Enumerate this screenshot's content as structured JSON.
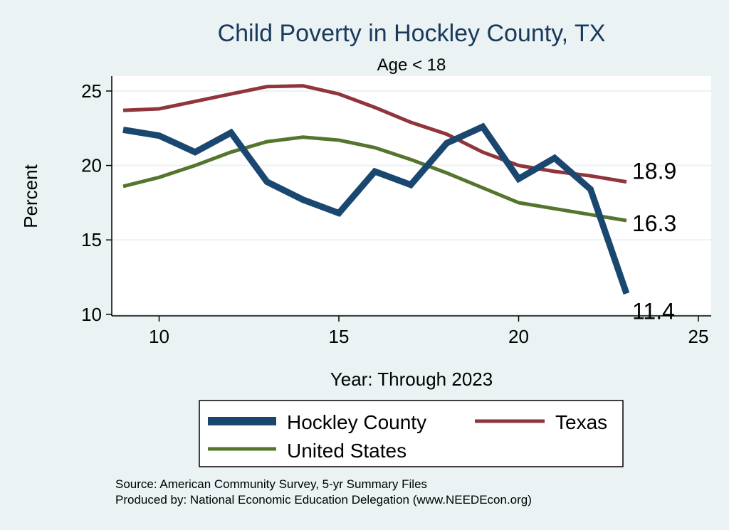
{
  "chart_data": {
    "type": "line",
    "title": "Child Poverty in Hockley County, TX",
    "subtitle": "Age < 18",
    "xlabel": "Year: Through 2023",
    "ylabel": "Percent",
    "xlim": [
      9,
      25
    ],
    "ylim": [
      9.9,
      26
    ],
    "x_ticks": [
      10,
      15,
      20,
      25
    ],
    "y_ticks": [
      10,
      15,
      20,
      25
    ],
    "x": [
      9,
      10,
      11,
      12,
      13,
      14,
      15,
      16,
      17,
      18,
      19,
      20,
      21,
      22,
      23
    ],
    "series": [
      {
        "name": "Hockley County",
        "color": "#1a476f",
        "values": [
          22.4,
          22.0,
          20.9,
          22.2,
          18.9,
          17.7,
          16.8,
          19.6,
          18.7,
          21.5,
          22.6,
          19.1,
          20.5,
          18.4,
          11.4
        ],
        "end_label": "11.4"
      },
      {
        "name": "Texas",
        "color": "#90353b",
        "values": [
          23.7,
          23.8,
          24.3,
          24.8,
          25.3,
          25.35,
          24.8,
          23.9,
          22.9,
          22.1,
          20.9,
          20.0,
          19.6,
          19.3,
          18.9
        ],
        "end_label": "18.9"
      },
      {
        "name": "United States",
        "color": "#55752f",
        "values": [
          18.6,
          19.2,
          20.0,
          20.9,
          21.6,
          21.9,
          21.7,
          21.2,
          20.4,
          19.5,
          18.5,
          17.5,
          17.1,
          16.7,
          16.3
        ],
        "end_label": "16.3"
      }
    ],
    "legend": [
      "Hockley County",
      "Texas",
      "United States"
    ],
    "legend_position": "bottom",
    "grid": true
  },
  "notes": {
    "source": "Source: American Community Survey, 5-yr Summary Files",
    "produced": "Produced by: National Economic Education Delegation (www.NEEDEcon.org)"
  }
}
